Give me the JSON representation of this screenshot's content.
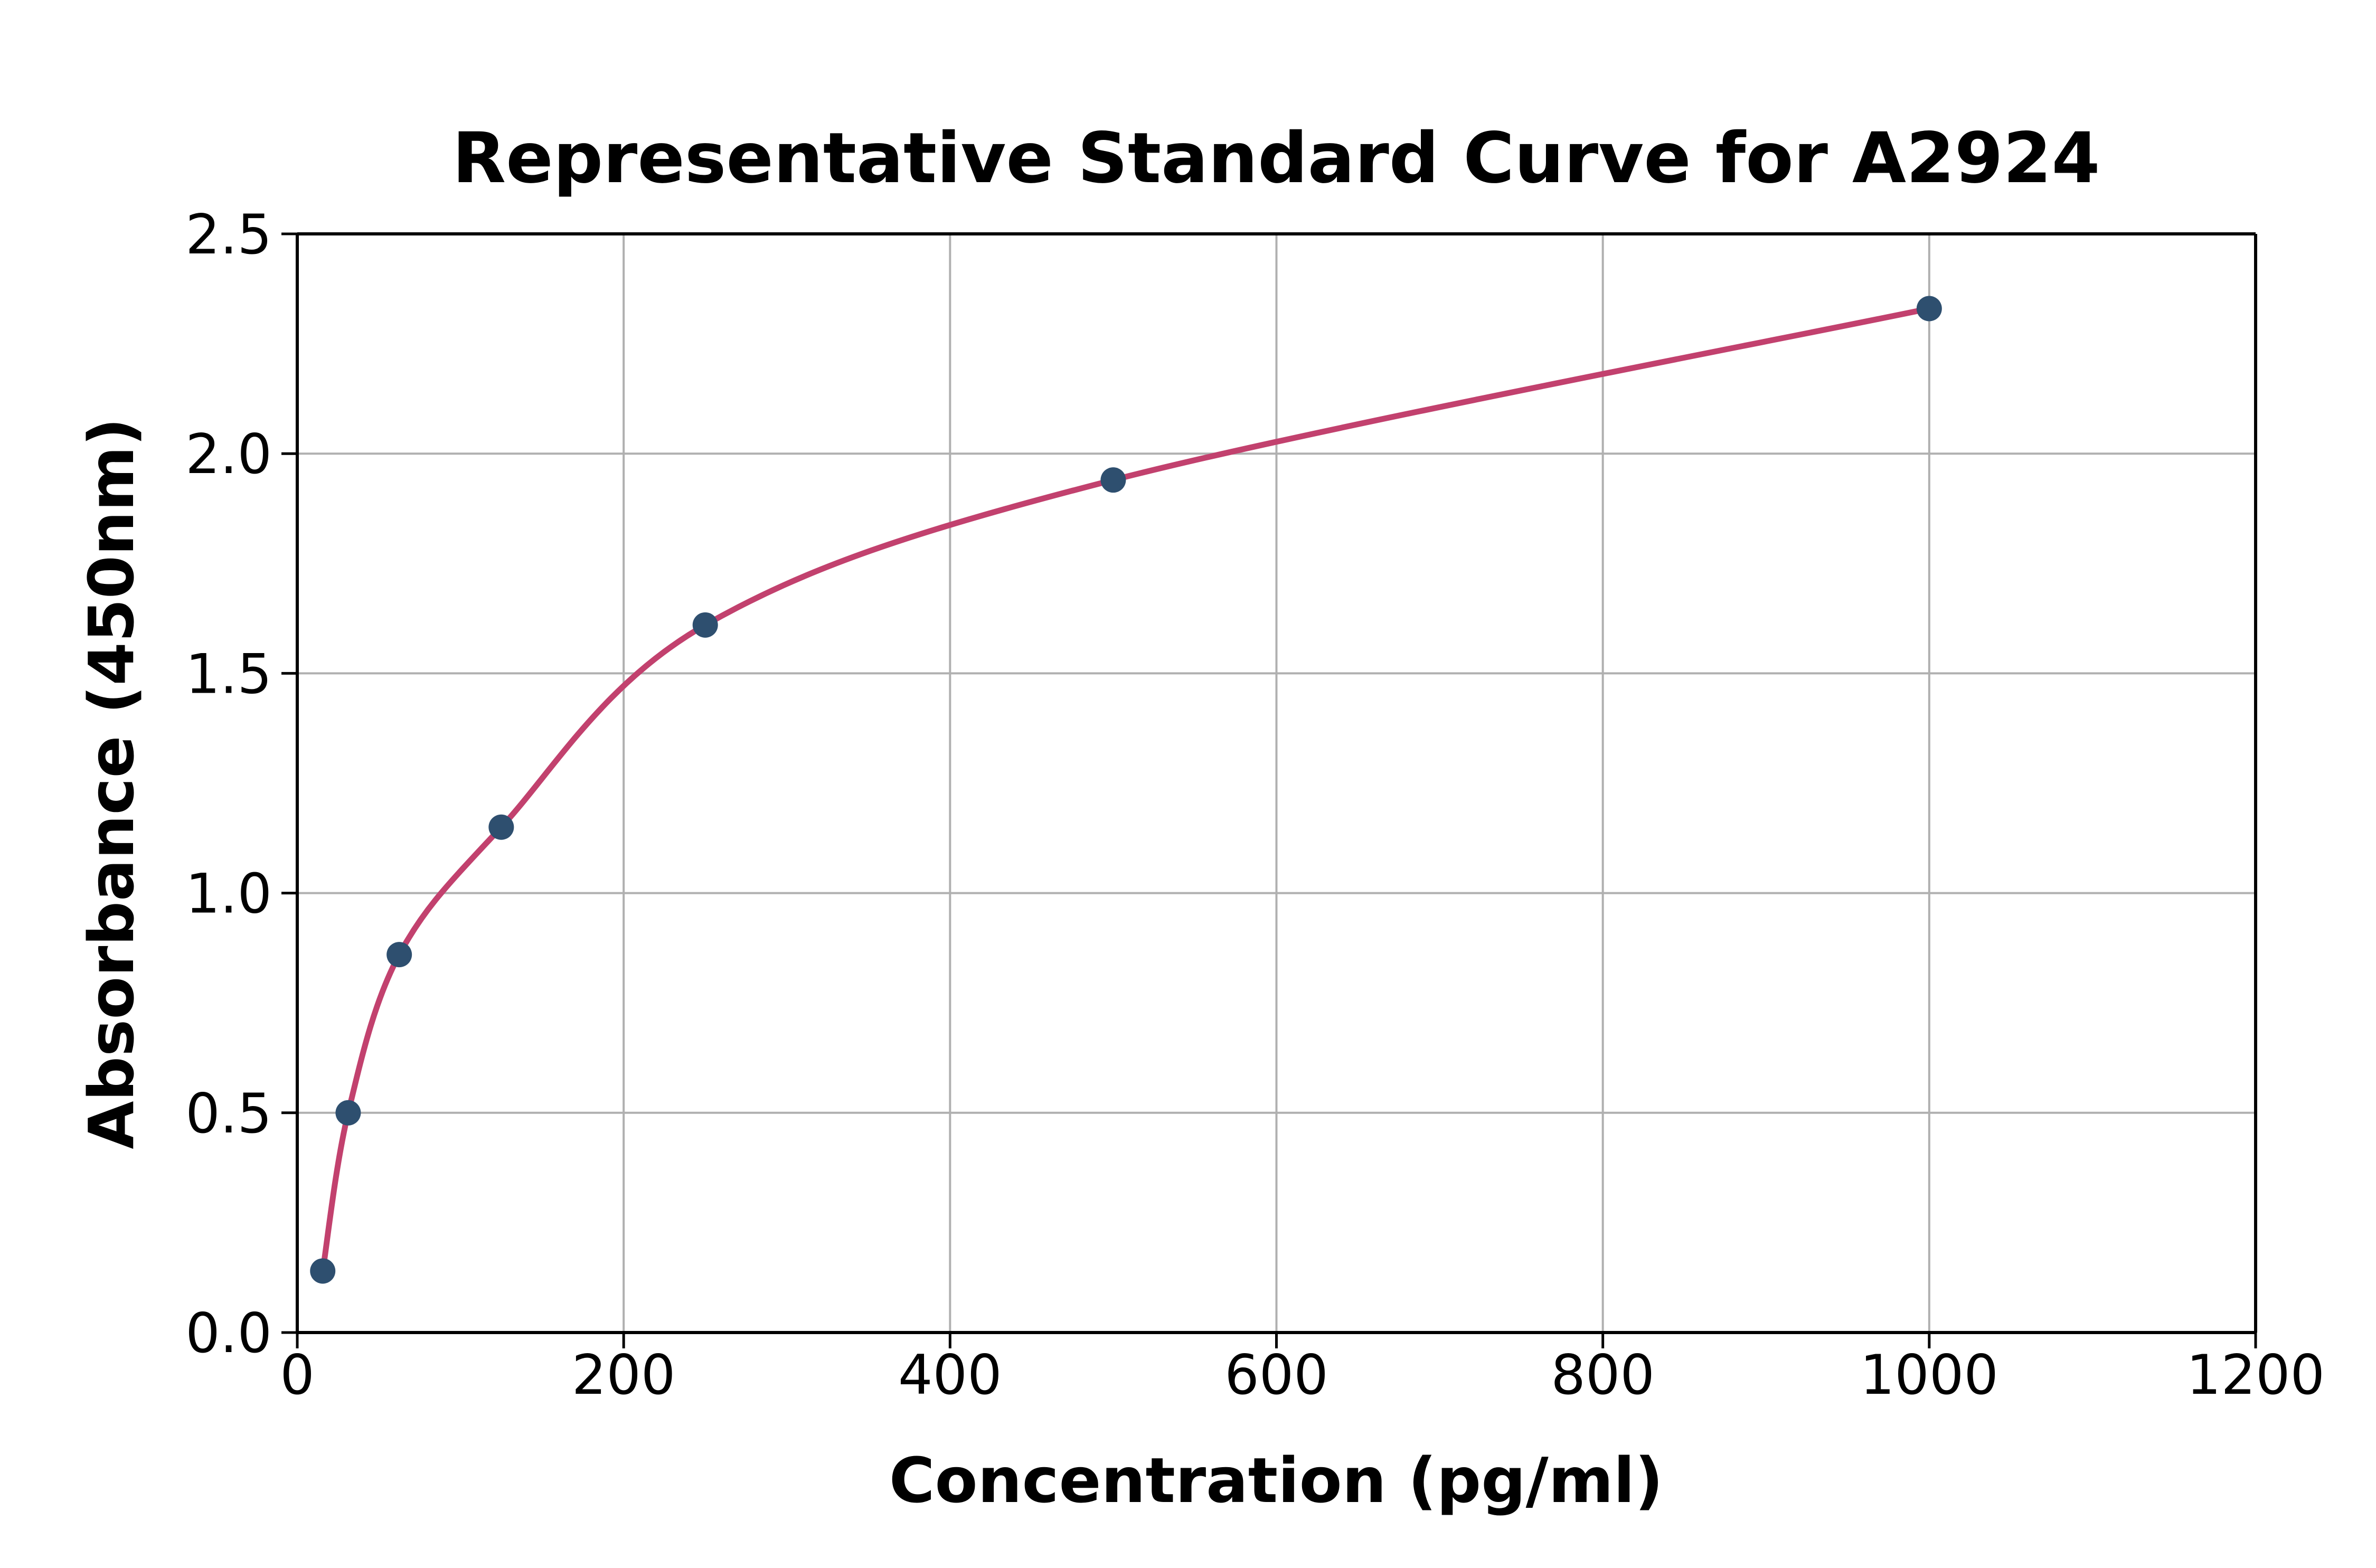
{
  "chart_data": {
    "type": "scatter",
    "title": "Representative Standard Curve for A2924",
    "xlabel": "Concentration (pg/ml)",
    "ylabel": "Absorbance (450nm)",
    "xlim": [
      0,
      1200
    ],
    "ylim": [
      0,
      2.5
    ],
    "grid": true,
    "legend": "none",
    "x_ticks": [
      0,
      200,
      400,
      600,
      800,
      1000,
      1200
    ],
    "x_tick_labels": [
      "0",
      "200",
      "400",
      "600",
      "800",
      "1000",
      "1200"
    ],
    "y_ticks": [
      0,
      0.5,
      1.0,
      1.5,
      2.0,
      2.5
    ],
    "y_tick_labels": [
      "0.0",
      "0.5",
      "1.0",
      "1.5",
      "2.0",
      "2.5"
    ],
    "series": [
      {
        "name": "standard-points",
        "x": [
          15.6,
          31.2,
          62.5,
          125,
          250,
          500,
          1000
        ],
        "y": [
          0.14,
          0.5,
          0.86,
          1.15,
          1.61,
          1.94,
          2.33
        ]
      }
    ],
    "colors": {
      "marker": "#2E4F6F",
      "curve": "#C2416E",
      "grid": "#B0B0B0",
      "spine": "#000000",
      "text": "#000000",
      "background": "#FFFFFF"
    }
  }
}
